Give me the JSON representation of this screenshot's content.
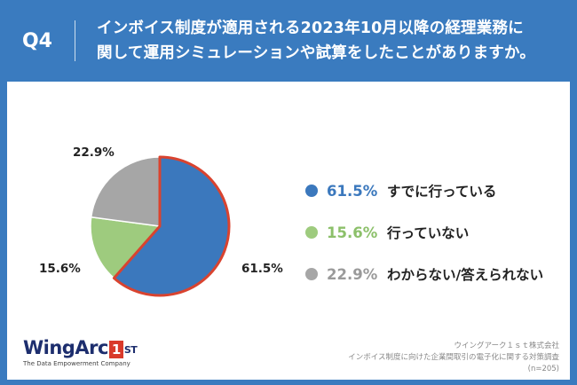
{
  "header": {
    "q_label": "Q4",
    "title_line1": "インボイス制度が適用される2023年10月以降の経理業務に",
    "title_line2": "関して運用シミュレーションや試算をしたことがありますか。"
  },
  "chart_data": {
    "type": "pie",
    "categories": [
      "すでに行っている",
      "行っていない",
      "わからない/答えられない"
    ],
    "values": [
      61.5,
      15.6,
      22.9
    ],
    "value_labels": [
      "61.5%",
      "15.6%",
      "22.9%"
    ],
    "colors": [
      "#3b78bd",
      "#9ecb7e",
      "#a6a6a6"
    ],
    "highlight_color": "#d9432f",
    "legend_placement": "right"
  },
  "logo": {
    "brand": "WingArc",
    "one": "1",
    "st": "ST",
    "tagline": "The Data Empowerment Company"
  },
  "source": {
    "line1": "ウイングアーク１ｓｔ株式会社",
    "line2": "インボイス制度に向けた企業間取引の電子化に関する対策調査",
    "line3": "(n=205)"
  }
}
